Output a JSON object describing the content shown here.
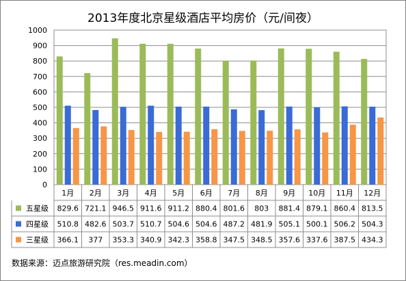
{
  "chart_data": {
    "type": "bar",
    "title": "2013年度北京星级酒店平均房价（元/间夜）",
    "categories": [
      "1月",
      "2月",
      "3月",
      "4月",
      "5月",
      "6月",
      "7月",
      "8月",
      "9月",
      "10月",
      "11月",
      "12月"
    ],
    "series": [
      {
        "name": "五星级",
        "color": "#9bbb59",
        "values": [
          829.6,
          721.1,
          946.5,
          911.6,
          911.2,
          880.4,
          801.6,
          803,
          881.4,
          879.1,
          860.4,
          813.5
        ],
        "labels": [
          "829.6",
          "721.1",
          "946.5",
          "911.6",
          "911.2",
          "880.4",
          "801.6",
          "803",
          "881.4",
          "879.1",
          "860.4",
          "813.5"
        ]
      },
      {
        "name": "四星级",
        "color": "#3a6bd6",
        "values": [
          510.8,
          482.6,
          503.7,
          510.7,
          504.6,
          504.6,
          487.2,
          481.9,
          505.1,
          500.1,
          506.2,
          504.3
        ],
        "labels": [
          "510.8",
          "482.6",
          "503.7",
          "510.7",
          "504.6",
          "504.6",
          "487.2",
          "481.9",
          "505.1",
          "500.1",
          "506.2",
          "504.3"
        ]
      },
      {
        "name": "三星级",
        "color": "#f79646",
        "values": [
          366.1,
          377,
          353.3,
          340.9,
          342.3,
          358.8,
          347.5,
          348.5,
          357.6,
          337.6,
          387.5,
          434.3
        ],
        "labels": [
          "366.1",
          "377",
          "353.3",
          "340.9",
          "342.3",
          "358.8",
          "347.5",
          "348.5",
          "357.6",
          "337.6",
          "387.5",
          "434.3"
        ]
      }
    ],
    "ylim": [
      0,
      1000
    ],
    "yticks": [
      "0",
      "100",
      "200",
      "300",
      "400",
      "500",
      "600",
      "700",
      "800",
      "900",
      "1000"
    ],
    "grid": true,
    "legend": "data-table"
  },
  "source": "数据来源：迈点旅游研究院（res.meadin.com）"
}
